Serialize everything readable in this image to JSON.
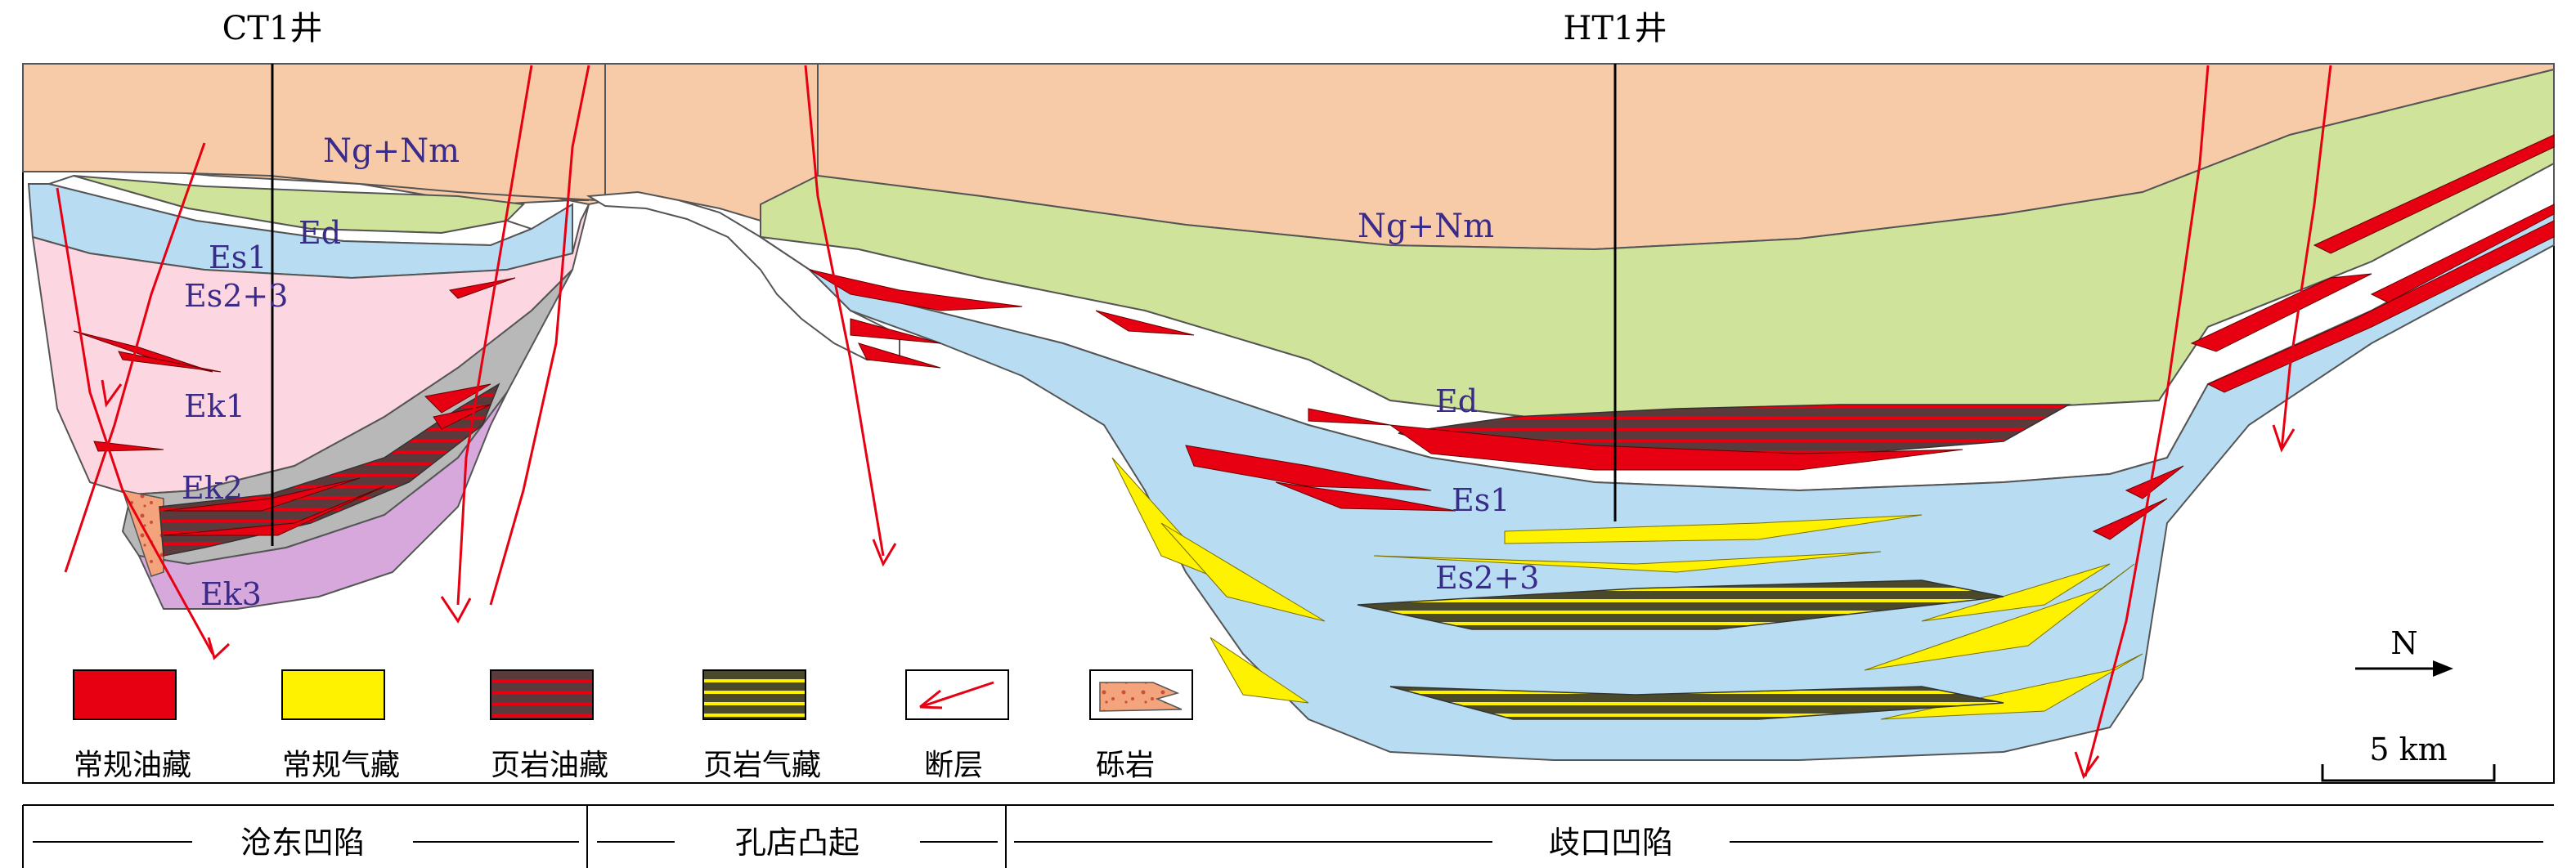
{
  "wells": {
    "left": "CT1井",
    "right": "HT1井"
  },
  "formations": {
    "ng_nm_left": "Ng+Nm",
    "ng_nm_right": "Ng+Nm",
    "ed_left": "Ed",
    "ed_right": "Ed",
    "es1_left": "Es1",
    "es1_right": "Es1",
    "es23_left": "Es2+3",
    "es23_right": "Es2+3",
    "ek1": "Ek1",
    "ek2": "Ek2",
    "ek3": "Ek3"
  },
  "legend": [
    {
      "label": "常规油藏",
      "color": "#e60012",
      "pattern": "solid"
    },
    {
      "label": "常规气藏",
      "color": "#fff200",
      "pattern": "solid"
    },
    {
      "label": "页岩油藏",
      "color": "#5a3a3a",
      "pattern": "striped-red"
    },
    {
      "label": "页岩气藏",
      "color": "#4a4a2a",
      "pattern": "striped-yellow"
    },
    {
      "label": "断层",
      "color": "#e60012",
      "pattern": "fault"
    },
    {
      "label": "砾岩",
      "color": "#f4a47c",
      "pattern": "conglomerate"
    }
  ],
  "north_label": "N",
  "scale_label": "5 km",
  "regions": [
    {
      "label": "沧东凹陷"
    },
    {
      "label": "孔店凸起"
    },
    {
      "label": "歧口凹陷"
    }
  ],
  "colors": {
    "ng_nm": "#f7cba8",
    "ed": "#cfe39a",
    "es1": "#ffffff",
    "es23": "#b8dcf2",
    "ek1": "#fcd6e0",
    "ek2": "#b8b8b8",
    "ek3": "#d6a8dc",
    "oil": "#e60012",
    "gas": "#fff200",
    "fault": "#e60012"
  }
}
